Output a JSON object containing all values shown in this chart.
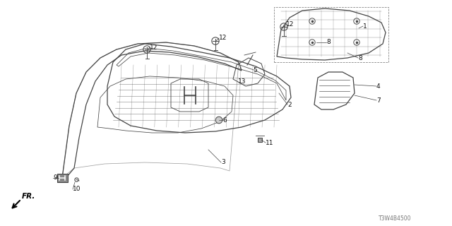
{
  "background_color": "#ffffff",
  "diagram_id": "T3W4B4500",
  "line_color": "#444444",
  "label_color": "#111111",
  "label_fontsize": 6.5
}
